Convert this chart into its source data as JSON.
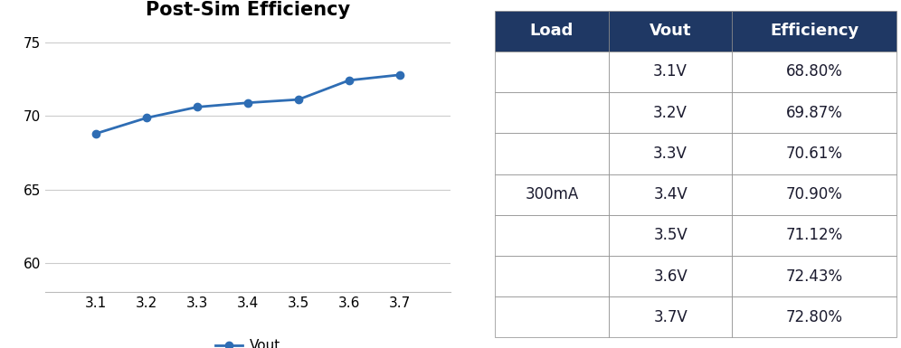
{
  "title": "Post-Sim Efficiency",
  "x_values": [
    3.1,
    3.2,
    3.3,
    3.4,
    3.5,
    3.6,
    3.7
  ],
  "y_values": [
    68.8,
    69.87,
    70.61,
    70.9,
    71.12,
    72.43,
    72.8
  ],
  "line_color": "#2E6DB4",
  "marker": "o",
  "marker_color": "#2E6DB4",
  "ylim": [
    58,
    76
  ],
  "yticks": [
    60,
    65,
    70,
    75
  ],
  "xlim": [
    3.0,
    3.8
  ],
  "xticks": [
    3.1,
    3.2,
    3.3,
    3.4,
    3.5,
    3.6,
    3.7
  ],
  "legend_label": "Vout",
  "grid_color": "#CCCCCC",
  "background_color": "#FFFFFF",
  "title_fontsize": 15,
  "tick_fontsize": 11,
  "legend_fontsize": 11,
  "table_header_bg": "#1F3864",
  "table_header_fg": "#FFFFFF",
  "table_border_color": "#888888",
  "table_headers": [
    "Load",
    "Vout",
    "Efficiency"
  ],
  "table_col1": [
    "",
    "",
    "",
    "300mA",
    "",
    "",
    ""
  ],
  "table_col2": [
    "3.1V",
    "3.2V",
    "3.3V",
    "3.4V",
    "3.5V",
    "3.6V",
    "3.7V"
  ],
  "table_col3": [
    "68.80%",
    "69.87%",
    "70.61%",
    "70.90%",
    "71.12%",
    "72.43%",
    "72.80%"
  ],
  "table_text_color": "#1A1A2E",
  "table_fontsize": 12,
  "table_header_fontsize": 13
}
